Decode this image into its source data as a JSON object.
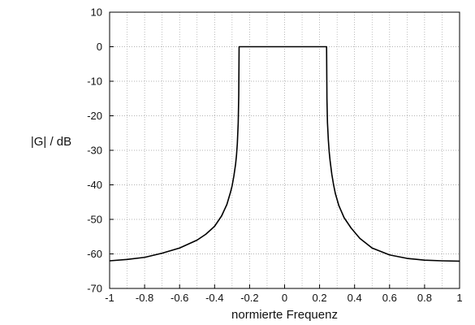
{
  "chart_data": {
    "type": "line",
    "title": "",
    "xlabel": "normierte Frequenz",
    "ylabel": "|G| / dB",
    "xlim": [
      -1,
      1
    ],
    "ylim": [
      -70,
      10
    ],
    "x_ticks": [
      -1,
      -0.8,
      -0.6,
      -0.4,
      -0.2,
      0,
      0.2,
      0.4,
      0.6,
      0.8,
      1
    ],
    "x_tick_labels": [
      "-1",
      "-0.8",
      "-0.6",
      "-0.4",
      "-0.2",
      "0",
      "0.2",
      "0.4",
      "0.6",
      "0.8",
      "1"
    ],
    "y_ticks": [
      10,
      0,
      -10,
      -20,
      -30,
      -40,
      -50,
      -60,
      -70
    ],
    "y_tick_labels": [
      "10",
      "0",
      "-10",
      "-20",
      "-30",
      "-40",
      "-50",
      "-60",
      "-70"
    ],
    "grid": true,
    "grid_minor_x": true,
    "series": [
      {
        "color": "#000000",
        "x": [
          -1,
          -0.9,
          -0.8,
          -0.7,
          -0.6,
          -0.5,
          -0.45,
          -0.4,
          -0.36,
          -0.33,
          -0.31,
          -0.3,
          -0.29,
          -0.28,
          -0.275,
          -0.27,
          -0.265,
          -0.262,
          -0.26,
          -0.26,
          0,
          0.24,
          0.24,
          0.242,
          0.245,
          0.25,
          0.255,
          0.26,
          0.27,
          0.28,
          0.29,
          0.31,
          0.34,
          0.38,
          0.43,
          0.5,
          0.6,
          0.7,
          0.8,
          0.9,
          1
        ],
        "y": [
          -62,
          -61.6,
          -61,
          -59.8,
          -58.3,
          -56,
          -54.3,
          -52,
          -49,
          -45.7,
          -42.3,
          -40.3,
          -37.5,
          -34,
          -31.5,
          -28,
          -22,
          -14,
          0,
          0,
          0,
          0,
          0,
          -15,
          -22,
          -27,
          -30.5,
          -33,
          -37,
          -40,
          -42.5,
          -46,
          -49.5,
          -52.5,
          -55.5,
          -58.3,
          -60.3,
          -61.3,
          -61.8,
          -62,
          -62.1
        ]
      }
    ]
  }
}
